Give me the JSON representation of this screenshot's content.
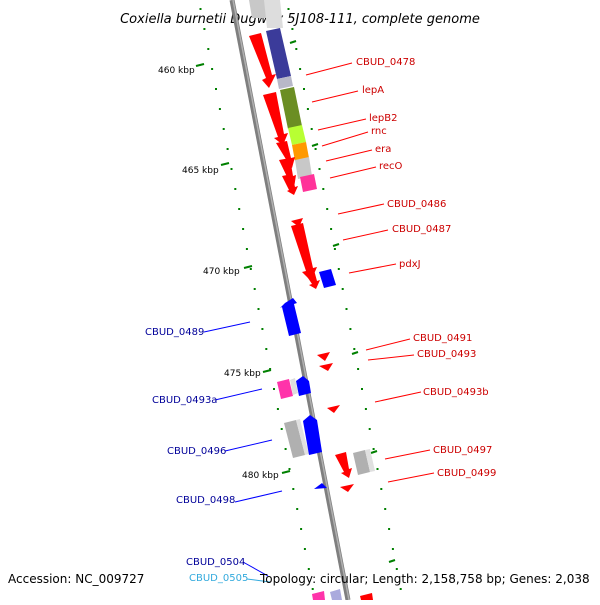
{
  "title": "Coxiella burnetii Dugway 5J108-111, complete genome",
  "footer": {
    "accession": "Accession: NC_009727",
    "summary": "Topology: circular; Length: 2,158,758 bp; Genes: 2,038"
  },
  "colors": {
    "red_label": "#cc0000",
    "blue_label": "#000099",
    "cyan_label": "#33aadd",
    "backbone": "#808080",
    "tick": "#008000"
  },
  "kbp_labels": [
    "460 kbp",
    "465 kbp",
    "470 kbp",
    "475 kbp",
    "480 kbp"
  ],
  "right_labels": [
    "CBUD_0478",
    "lepA",
    "lepB2",
    "rnc",
    "era",
    "recO",
    "CBUD_0486",
    "CBUD_0487",
    "pdxJ",
    "CBUD_0491",
    "CBUD_0493",
    "CBUD_0493b",
    "CBUD_0497",
    "CBUD_0499"
  ],
  "left_labels": [
    "CBUD_0489",
    "CBUD_0493a",
    "CBUD_0496",
    "CBUD_0498",
    "CBUD_0504",
    "CBUD_0505"
  ]
}
